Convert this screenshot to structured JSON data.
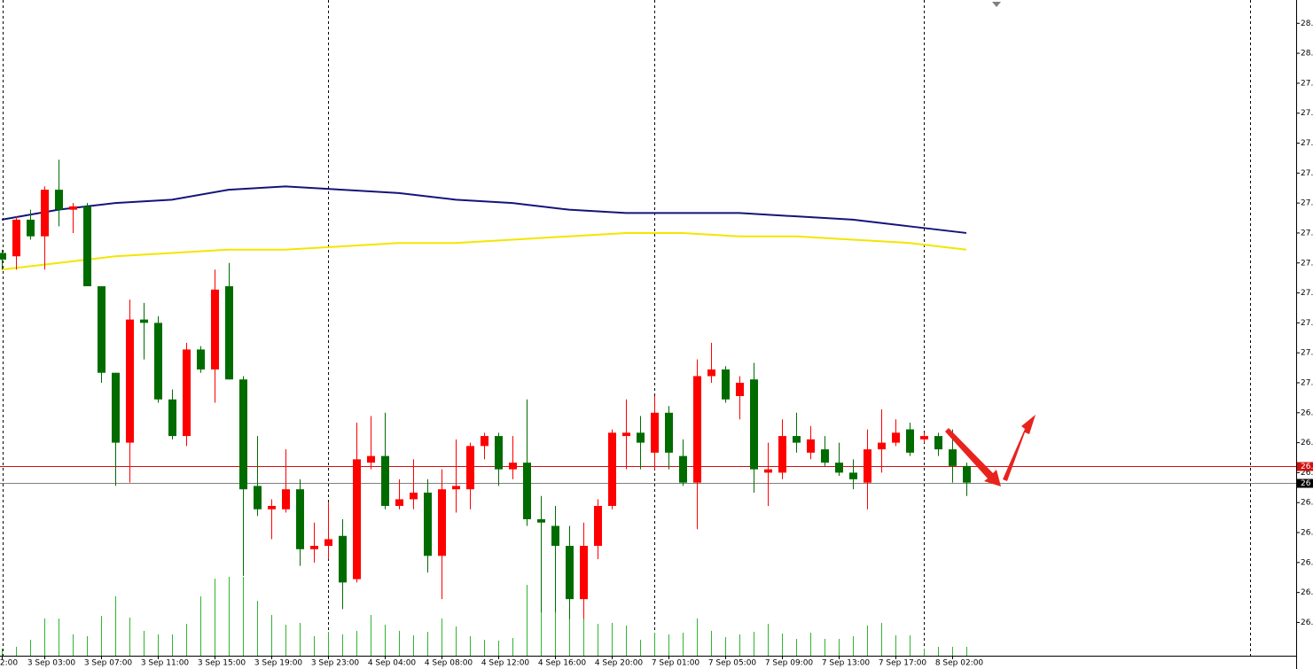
{
  "chart_data": {
    "type": "candlestick",
    "categories": [
      "2:00",
      null,
      null,
      "3 Sep 03:00",
      null,
      null,
      null,
      "3 Sep 07:00",
      null,
      null,
      null,
      "3 Sep 11:00",
      null,
      null,
      null,
      "3 Sep 15:00",
      null,
      null,
      null,
      "3 Sep 19:00",
      null,
      null,
      null,
      "3 Sep 23:00",
      null,
      null,
      null,
      "4 Sep 04:00",
      null,
      null,
      null,
      "4 Sep 08:00",
      null,
      null,
      null,
      "4 Sep 12:00",
      null,
      null,
      null,
      "4 Sep 16:00",
      null,
      null,
      null,
      "4 Sep 20:00",
      null,
      null,
      null,
      "7 Sep 01:00",
      null,
      null,
      null,
      "7 Sep 05:00",
      null,
      null,
      null,
      "7 Sep 09:00",
      null,
      null,
      null,
      "7 Sep 13:00",
      null,
      null,
      null,
      "7 Sep 17:00",
      null,
      null,
      null,
      "8 Sep 02:00",
      null
    ],
    "open": [
      27.43,
      27.42,
      27.53,
      27.48,
      27.62,
      27.56,
      27.57,
      27.33,
      27.07,
      26.86,
      27.23,
      27.22,
      26.99,
      26.88,
      27.14,
      27.08,
      27.33,
      27.05,
      26.73,
      26.66,
      26.66,
      26.72,
      26.54,
      26.55,
      26.58,
      26.45,
      26.8,
      26.82,
      26.67,
      26.69,
      26.71,
      26.52,
      26.72,
      26.72,
      26.85,
      26.88,
      26.78,
      26.8,
      26.63,
      26.61,
      26.55,
      26.39,
      26.55,
      26.67,
      26.88,
      26.89,
      26.83,
      26.95,
      26.82,
      26.74,
      27.06,
      27.08,
      27.0,
      27.05,
      26.77,
      26.77,
      26.88,
      26.83,
      26.84,
      26.8,
      26.77,
      26.74,
      26.84,
      26.86,
      26.9,
      26.87,
      26.88,
      26.84,
      26.79
    ],
    "high": [
      27.44,
      27.54,
      27.56,
      27.63,
      27.71,
      27.58,
      27.58,
      27.33,
      27.07,
      27.29,
      27.28,
      27.24,
      27.02,
      27.16,
      27.15,
      27.38,
      27.4,
      27.06,
      26.88,
      26.69,
      26.84,
      26.75,
      26.62,
      26.68,
      26.63,
      26.92,
      26.94,
      26.95,
      26.75,
      26.81,
      26.75,
      26.78,
      26.87,
      26.86,
      26.89,
      26.89,
      26.88,
      26.99,
      26.7,
      26.67,
      26.61,
      26.62,
      26.69,
      26.9,
      26.99,
      26.94,
      27.0,
      26.97,
      26.87,
      27.11,
      27.16,
      27.09,
      27.06,
      27.1,
      26.86,
      26.93,
      26.95,
      26.91,
      26.88,
      26.86,
      26.81,
      26.9,
      26.96,
      26.93,
      26.92,
      26.89,
      26.89,
      26.9,
      26.8
    ],
    "low": [
      27.38,
      27.38,
      27.47,
      27.38,
      27.51,
      27.49,
      27.33,
      27.04,
      26.73,
      26.74,
      27.11,
      26.98,
      26.87,
      26.85,
      27.07,
      26.98,
      27.05,
      26.46,
      26.64,
      26.57,
      26.65,
      26.49,
      26.5,
      26.51,
      26.36,
      26.44,
      26.78,
      26.66,
      26.66,
      26.66,
      26.47,
      26.39,
      26.65,
      26.66,
      26.81,
      26.73,
      26.75,
      26.61,
      26.35,
      26.35,
      26.33,
      26.33,
      26.51,
      26.66,
      26.78,
      26.78,
      26.78,
      26.78,
      26.73,
      26.6,
      27.04,
      26.98,
      26.93,
      26.71,
      26.67,
      26.75,
      26.83,
      26.81,
      26.79,
      26.76,
      26.72,
      26.66,
      26.77,
      26.85,
      26.82,
      26.86,
      26.82,
      26.74,
      26.7
    ],
    "close": [
      27.41,
      27.53,
      27.48,
      27.62,
      27.56,
      27.57,
      27.33,
      27.07,
      26.86,
      27.23,
      27.22,
      26.99,
      26.88,
      27.14,
      27.08,
      27.32,
      27.05,
      26.72,
      26.66,
      26.67,
      26.72,
      26.54,
      26.55,
      26.57,
      26.44,
      26.81,
      26.82,
      26.67,
      26.69,
      26.71,
      26.52,
      26.72,
      26.73,
      26.85,
      26.88,
      26.78,
      26.8,
      26.63,
      26.62,
      26.55,
      26.39,
      26.55,
      26.67,
      26.89,
      26.89,
      26.86,
      26.95,
      26.83,
      26.74,
      27.06,
      27.08,
      26.99,
      27.04,
      26.78,
      26.78,
      26.88,
      26.86,
      26.87,
      26.8,
      26.77,
      26.75,
      26.84,
      26.86,
      26.89,
      26.83,
      26.88,
      26.84,
      26.79,
      26.74
    ],
    "up_color": "#ff0000",
    "down_color": "#006c00",
    "volumes": [
      8,
      10,
      18,
      42,
      42,
      24,
      22,
      45,
      67,
      43,
      28,
      24,
      24,
      36,
      67,
      87,
      89,
      89,
      62,
      46,
      35,
      37,
      22,
      27,
      24,
      28,
      46,
      35,
      28,
      23,
      27,
      42,
      33,
      22,
      18,
      17,
      20,
      80,
      53,
      52,
      74,
      57,
      36,
      37,
      34,
      18,
      26,
      24,
      26,
      42,
      28,
      21,
      24,
      27,
      36,
      25,
      19,
      26,
      19,
      19,
      22,
      34,
      37,
      23,
      23,
      8,
      10,
      10,
      10
    ],
    "volume_color": "#2fb52f",
    "vlim": [
      0,
      100
    ],
    "moving_averages": [
      {
        "color": "#14147a",
        "x": [
          0,
          4,
          8,
          12,
          16,
          20,
          24,
          28,
          32,
          36,
          40,
          44,
          48,
          52,
          56,
          60,
          64,
          68
        ],
        "values": [
          27.53,
          27.56,
          27.58,
          27.59,
          27.62,
          27.63,
          27.62,
          27.61,
          27.59,
          27.58,
          27.56,
          27.55,
          27.55,
          27.55,
          27.54,
          27.53,
          27.51,
          27.49
        ]
      },
      {
        "color": "#f2e600",
        "x": [
          0,
          4,
          8,
          12,
          16,
          20,
          24,
          28,
          32,
          36,
          40,
          44,
          48,
          52,
          56,
          60,
          64,
          68
        ],
        "values": [
          27.38,
          27.4,
          27.42,
          27.43,
          27.44,
          27.44,
          27.45,
          27.46,
          27.46,
          27.47,
          27.48,
          27.49,
          27.49,
          27.48,
          27.48,
          27.47,
          27.46,
          27.44
        ]
      }
    ],
    "price_lines": [
      {
        "value": 26.79,
        "label": "26.",
        "color": "#d01010"
      },
      {
        "value": 26.74,
        "label": "26",
        "color": "#808080"
      }
    ],
    "ylim": [
      26.22,
      28.19
    ],
    "yticks": [
      {
        "value": 28.12,
        "label": "28."
      },
      {
        "value": 28.03,
        "label": "28."
      },
      {
        "value": 27.94,
        "label": "27."
      },
      {
        "value": 27.85,
        "label": "27."
      },
      {
        "value": 27.76,
        "label": "27."
      },
      {
        "value": 27.67,
        "label": "27."
      },
      {
        "value": 27.58,
        "label": "27."
      },
      {
        "value": 27.49,
        "label": "27."
      },
      {
        "value": 27.4,
        "label": "27."
      },
      {
        "value": 27.31,
        "label": "27."
      },
      {
        "value": 27.22,
        "label": "27."
      },
      {
        "value": 27.13,
        "label": "27."
      },
      {
        "value": 27.04,
        "label": "27."
      },
      {
        "value": 26.95,
        "label": "26."
      },
      {
        "value": 26.86,
        "label": "26."
      },
      {
        "value": 26.77,
        "label": "26."
      },
      {
        "value": 26.68,
        "label": "26."
      },
      {
        "value": 26.59,
        "label": "26."
      },
      {
        "value": 26.5,
        "label": "26."
      },
      {
        "value": 26.41,
        "label": "26."
      },
      {
        "value": 26.32,
        "label": "26."
      }
    ]
  }
}
